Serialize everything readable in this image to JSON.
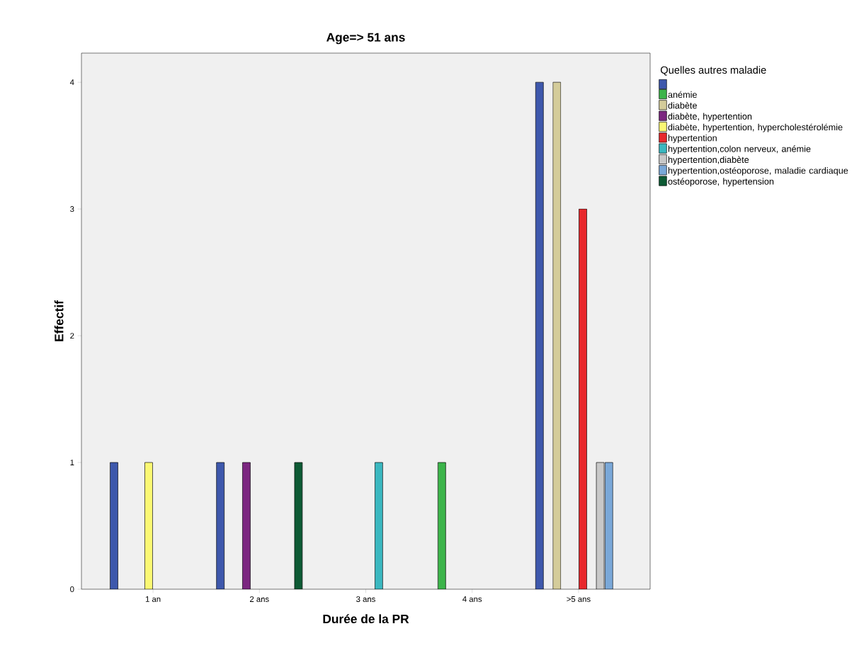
{
  "chart_data": {
    "type": "bar",
    "title": "Age=> 51 ans",
    "xlabel": "Durée de la PR",
    "ylabel": "Effectif",
    "legend_title": "Quelles autres maladie",
    "categories": [
      "1 an",
      "2 ans",
      "3 ans",
      "4 ans",
      ">5 ans"
    ],
    "series": [
      {
        "color": "#3e58ac",
        "values": [
          1,
          1,
          null,
          null,
          4
        ]
      },
      {
        "name": "anémie",
        "color": "#3cb44a",
        "values": [
          null,
          null,
          null,
          1,
          null
        ]
      },
      {
        "name": "diabète",
        "color": "#d4cc9a",
        "values": [
          null,
          null,
          null,
          null,
          4
        ]
      },
      {
        "name": "diabète, hypertention",
        "color": "#7b2680",
        "values": [
          null,
          1,
          null,
          null,
          null
        ]
      },
      {
        "name": "diabète, hypertention, hypercholestérolémie",
        "color": "#fbf873",
        "values": [
          1,
          null,
          null,
          null,
          null
        ]
      },
      {
        "name": "hypertention",
        "color": "#e8282c",
        "values": [
          null,
          null,
          null,
          null,
          3
        ]
      },
      {
        "name": "hypertention,colon nerveux, anémie",
        "color": "#3bb8c0",
        "values": [
          null,
          null,
          1,
          null,
          null
        ]
      },
      {
        "name": "hypertention,diabète",
        "color": "#c8c8c8",
        "values": [
          null,
          null,
          null,
          null,
          1
        ]
      },
      {
        "name": "hypertention,ostéoporose, maladie cardiaque",
        "color": "#7aa8d8",
        "values": [
          null,
          null,
          null,
          null,
          1
        ]
      },
      {
        "name": "ostéoporose, hypertension",
        "color": "#0d5a34",
        "values": [
          null,
          1,
          null,
          null,
          null
        ]
      }
    ],
    "ylim": [
      0,
      4.23
    ],
    "yticks": [
      0,
      1,
      2,
      3,
      4
    ],
    "grid": false,
    "legend": "right"
  }
}
